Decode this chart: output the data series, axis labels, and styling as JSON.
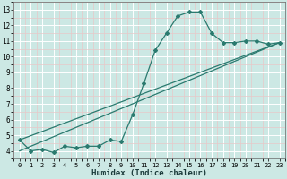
{
  "xlabel": "Humidex (Indice chaleur)",
  "bg_color": "#cce8e4",
  "line_color": "#2a7a6f",
  "grid_color": "#ffffff",
  "grid_minor_color": "#e8c8c8",
  "xlim": [
    -0.5,
    23.5
  ],
  "ylim": [
    3.5,
    13.5
  ],
  "xticks": [
    0,
    1,
    2,
    3,
    4,
    5,
    6,
    7,
    8,
    9,
    10,
    11,
    12,
    13,
    14,
    15,
    16,
    17,
    18,
    19,
    20,
    21,
    22,
    23
  ],
  "yticks": [
    4,
    5,
    6,
    7,
    8,
    9,
    10,
    11,
    12,
    13
  ],
  "line1_x": [
    0,
    1,
    2,
    3,
    4,
    5,
    6,
    7,
    8,
    9,
    10,
    11,
    12,
    13,
    14,
    15,
    16,
    17,
    18,
    19,
    20,
    21,
    22,
    23
  ],
  "line1_y": [
    4.7,
    4.0,
    4.1,
    3.9,
    4.3,
    4.2,
    4.3,
    4.3,
    4.7,
    4.6,
    6.3,
    8.3,
    10.4,
    11.5,
    12.6,
    12.85,
    12.85,
    11.5,
    10.9,
    10.9,
    11.0,
    11.0,
    10.8,
    10.9
  ],
  "line2_x": [
    0,
    23
  ],
  "line2_y": [
    4.7,
    10.9
  ],
  "line3_x": [
    0,
    23
  ],
  "line3_y": [
    4.0,
    10.9
  ],
  "marker_size": 2.0,
  "linewidth": 0.9
}
